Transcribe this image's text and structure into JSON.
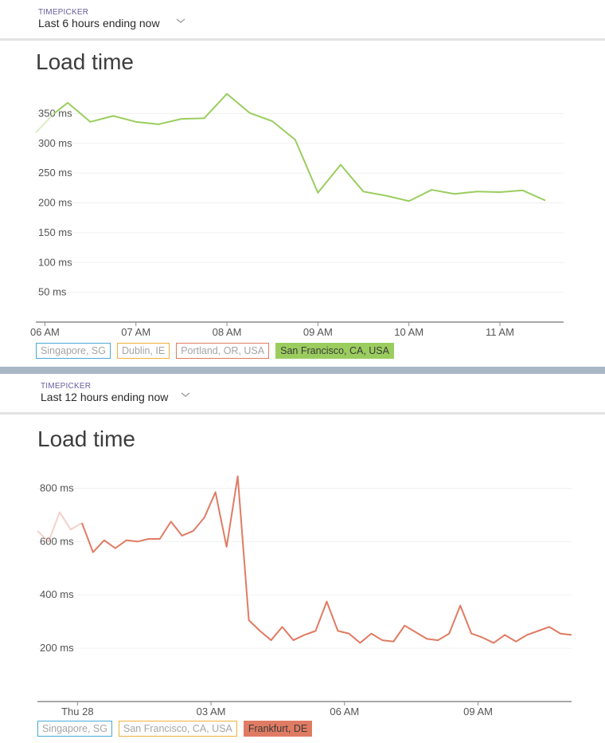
{
  "panels": [
    {
      "timepicker": {
        "label": "TIMEPICKER",
        "value": "Last 6 hours ending now"
      },
      "title": "Load time",
      "legend": [
        {
          "label": "Singapore, SG",
          "color": "#4aa9d6",
          "active": false
        },
        {
          "label": "Dublin, IE",
          "color": "#f0b23c",
          "active": false
        },
        {
          "label": "Portland, OR, USA",
          "color": "#e07b63",
          "active": false
        },
        {
          "label": "San Francisco, CA, USA",
          "color": "#9acd5e",
          "active": true
        }
      ]
    },
    {
      "timepicker": {
        "label": "TIMEPICKER",
        "value": "Last 12 hours ending now"
      },
      "title": "Load time",
      "legend": [
        {
          "label": "Singapore, SG",
          "color": "#4aa9d6",
          "active": false
        },
        {
          "label": "San Francisco, CA, USA",
          "color": "#f0b23c",
          "active": false
        },
        {
          "label": "Frankfurt, DE",
          "color": "#e07b63",
          "active": true
        }
      ]
    }
  ],
  "chart_data": [
    {
      "type": "line",
      "title": "Load time",
      "xlabel": "",
      "ylabel": "",
      "x_ticks": [
        "06 AM",
        "07 AM",
        "08 AM",
        "09 AM",
        "10 AM",
        "11 AM"
      ],
      "y_ticks": [
        "50 ms",
        "100 ms",
        "150 ms",
        "200 ms",
        "250 ms",
        "300 ms",
        "350 ms"
      ],
      "ylim": [
        0,
        400
      ],
      "x_range_hours": [
        5.9,
        11.7
      ],
      "grid": true,
      "legend_position": "bottom-left",
      "series": [
        {
          "name": "San Francisco, CA, USA",
          "color": "#9acd5e",
          "x": [
            5.9,
            6.1,
            6.25,
            6.5,
            6.75,
            7.0,
            7.25,
            7.5,
            7.75,
            8.0,
            8.25,
            8.5,
            8.75,
            9.0,
            9.25,
            9.5,
            9.75,
            10.0,
            10.25,
            10.5,
            10.75,
            11.0,
            11.25,
            11.5
          ],
          "y": [
            318,
            350,
            368,
            336,
            346,
            336,
            332,
            341,
            342,
            383,
            351,
            337,
            306,
            217,
            264,
            219,
            212,
            203,
            222,
            215,
            219,
            218,
            221,
            204
          ]
        }
      ]
    },
    {
      "type": "line",
      "title": "Load time",
      "xlabel": "",
      "ylabel": "",
      "x_ticks": [
        "Thu 28",
        "03 AM",
        "06 AM",
        "09 AM"
      ],
      "y_ticks": [
        "200 ms",
        "400 ms",
        "600 ms",
        "800 ms"
      ],
      "ylim": [
        0,
        900
      ],
      "x_range_hours": [
        -0.9,
        11.1
      ],
      "grid": true,
      "legend_position": "bottom-left",
      "series": [
        {
          "name": "Frankfurt, DE",
          "color": "#e07b63",
          "x": [
            -0.9,
            -0.65,
            -0.4,
            -0.15,
            0.1,
            0.35,
            0.6,
            0.85,
            1.1,
            1.35,
            1.6,
            1.85,
            2.1,
            2.35,
            2.6,
            2.85,
            3.1,
            3.35,
            3.6,
            3.85,
            4.1,
            4.35,
            4.6,
            4.85,
            5.1,
            5.35,
            5.6,
            5.85,
            6.1,
            6.35,
            6.6,
            6.85,
            7.1,
            7.35,
            7.6,
            7.85,
            8.1,
            8.35,
            8.6,
            8.85,
            9.1,
            9.35,
            9.6,
            9.85,
            10.1,
            10.35,
            10.6,
            10.85,
            11.1
          ],
          "y": [
            640,
            600,
            710,
            645,
            670,
            560,
            605,
            575,
            605,
            600,
            610,
            610,
            675,
            622,
            640,
            690,
            785,
            580,
            845,
            305,
            265,
            230,
            280,
            230,
            250,
            265,
            375,
            265,
            255,
            220,
            255,
            230,
            225,
            285,
            260,
            235,
            230,
            255,
            360,
            255,
            240,
            220,
            250,
            225,
            250,
            265,
            280,
            255,
            250
          ]
        }
      ]
    }
  ]
}
